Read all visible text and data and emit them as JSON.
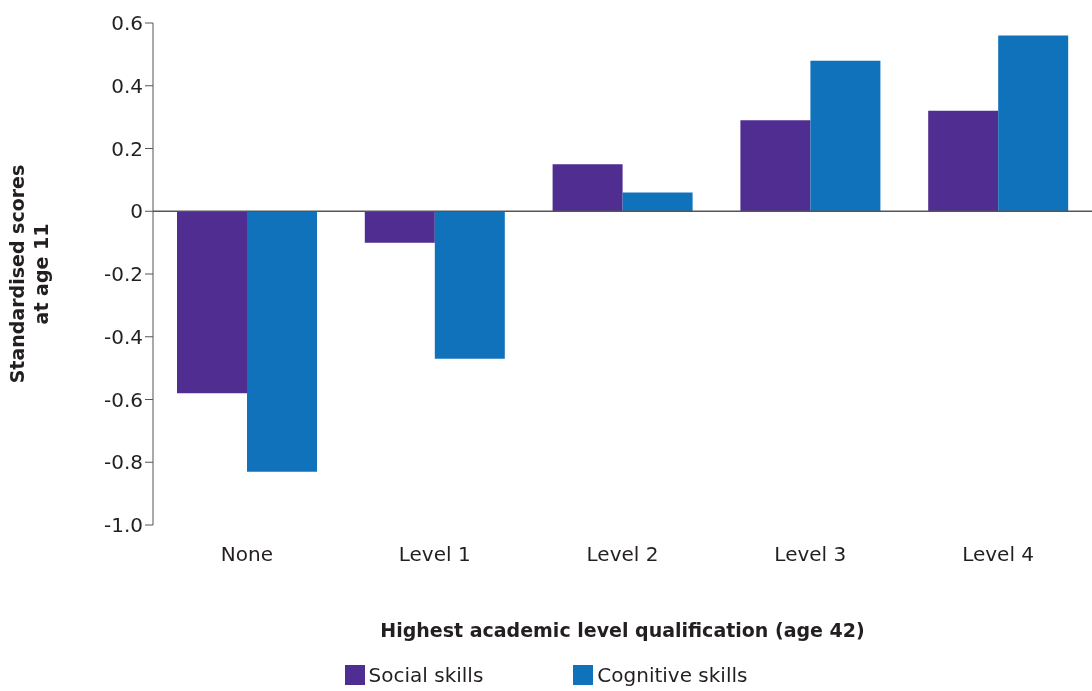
{
  "chart_data": {
    "type": "bar",
    "xlabel": "Highest academic level qualification (age 42)",
    "ylabel": "Standardised scores at age 11",
    "categories": [
      "None",
      "Level 1",
      "Level 2",
      "Level 3",
      "Level 4"
    ],
    "series": [
      {
        "name": "Social skills",
        "color": "#4f2d91",
        "values": [
          -0.58,
          -0.1,
          0.15,
          0.29,
          0.32
        ]
      },
      {
        "name": "Cognitive skills",
        "color": "#1172bc",
        "values": [
          -0.83,
          -0.47,
          0.06,
          0.48,
          0.56
        ]
      }
    ],
    "ylim": [
      -1,
      0.6
    ],
    "yticks": [
      {
        "value": -1,
        "label": "-1.0"
      },
      -0.8,
      -0.6,
      -0.4,
      -0.2,
      0,
      0.2,
      0.4,
      0.6
    ],
    "legend": "bottom"
  }
}
